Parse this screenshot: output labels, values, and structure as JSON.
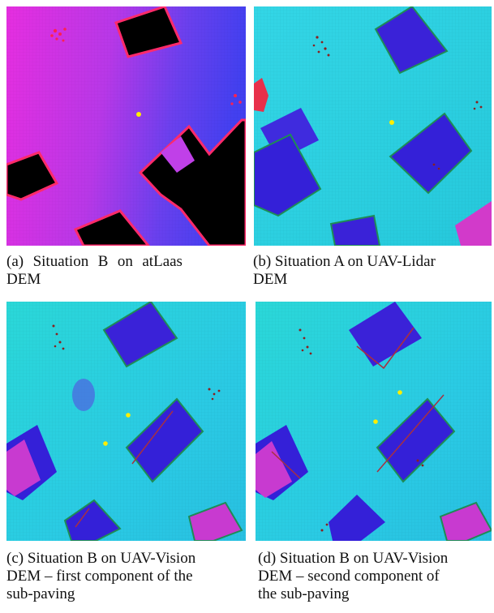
{
  "figure": {
    "panels": [
      {
        "id": "a",
        "caption": "(a) Situation B on atLaas DEM",
        "caption_lines": [
          "(a)  Situation  B  on  atLaas",
          "DEM"
        ]
      },
      {
        "id": "b",
        "caption": "(b) Situation A on UAV-Lidar DEM",
        "caption_lines": [
          "(b) Situation A on UAV-Lidar",
          "DEM"
        ]
      },
      {
        "id": "c",
        "caption": "(c) Situation B on UAV-Vision DEM – first component of the sub-paving",
        "caption_lines": [
          "(c) Situation B on UAV-Vision",
          "DEM – first component of the",
          "sub-paving"
        ]
      },
      {
        "id": "d",
        "caption": "(d) Situation B on UAV-Vision DEM – second component of the sub-paving",
        "caption_lines": [
          "(d) Situation B on UAV-Vision",
          "DEM – second component of",
          "the sub-paving"
        ]
      }
    ]
  }
}
